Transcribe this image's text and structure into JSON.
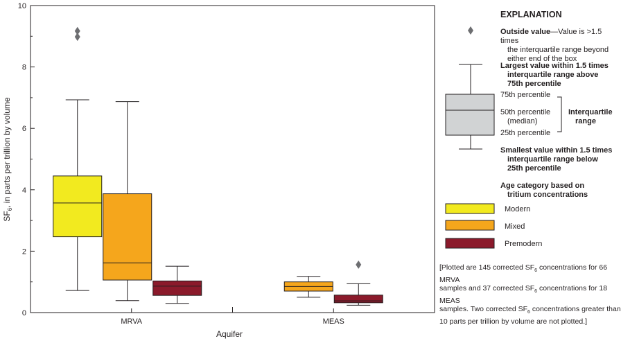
{
  "chart_data": {
    "type": "boxplot",
    "xlabel": "Aquifer",
    "ylabel_main": "SF",
    "ylabel_sub": "6",
    "ylabel_rest": ", in parts per trillion by volume",
    "ylim": [
      0,
      10
    ],
    "yticks": [
      "0",
      "2",
      "4",
      "6",
      "8",
      "10"
    ],
    "groups": [
      "MRVA",
      "MEAS"
    ],
    "series": [
      {
        "name": "Modern",
        "color": "#f2ea1f"
      },
      {
        "name": "Mixed",
        "color": "#f5a61c"
      },
      {
        "name": "Premodern",
        "color": "#8b1a2b"
      }
    ],
    "boxes": [
      {
        "group": "MRVA",
        "series": "Modern",
        "min": 0.72,
        "q1": 2.47,
        "median": 3.57,
        "q3": 4.45,
        "max": 6.93,
        "outliers": [
          8.98,
          9.17
        ]
      },
      {
        "group": "MRVA",
        "series": "Mixed",
        "min": 0.39,
        "q1": 1.06,
        "median": 1.62,
        "q3": 3.87,
        "max": 6.87,
        "outliers": []
      },
      {
        "group": "MRVA",
        "series": "Premodern",
        "min": 0.3,
        "q1": 0.56,
        "median": 0.86,
        "q3": 1.03,
        "max": 1.51,
        "outliers": []
      },
      {
        "group": "MEAS",
        "series": "Mixed",
        "min": 0.5,
        "q1": 0.7,
        "median": 0.85,
        "q3": 1.0,
        "max": 1.18,
        "outliers": []
      },
      {
        "group": "MEAS",
        "series": "Premodern",
        "min": 0.24,
        "q1": 0.32,
        "median": 0.38,
        "q3": 0.57,
        "max": 0.94,
        "outliers": [
          1.56
        ]
      }
    ]
  },
  "explanation": {
    "title": "EXPLANATION",
    "outside_bold": "Outside value",
    "outside_rest": "—Value is >1.5 times",
    "outside_line2": "the interquartile range beyond",
    "outside_line3": "either end of the box",
    "largest_line1": "Largest value within 1.5 times",
    "largest_line2": "interquartile range above",
    "largest_line3": "75th percentile",
    "p75": "75th percentile",
    "p50": "50th percentile",
    "median": "(median)",
    "p25": "25th percentile",
    "iqr_line1": "Interquartile",
    "iqr_line2": "range",
    "smallest_line1": "Smallest value within 1.5 times",
    "smallest_line2": "interquartile range below",
    "smallest_line3": "25th percentile",
    "age_line1": "Age category based on",
    "age_line2": "tritium concentrations",
    "modern": "Modern",
    "mixed": "Mixed",
    "premodern": "Premodern",
    "note_p1": "[Plotted are 145 corrected SF",
    "note_sub": "6",
    "note_p2": " concentrations for 66 MRVA",
    "note_p3": "samples and 37 corrected SF",
    "note_p4": " concentrations for 18 MEAS",
    "note_p5": "samples. Two corrected SF",
    "note_p6": " concentrations greater than",
    "note_p7": "10 parts per trillion by volume are not plotted.]",
    "diamond_color": "#6d6e71",
    "box_gray": "#d1d3d4"
  }
}
